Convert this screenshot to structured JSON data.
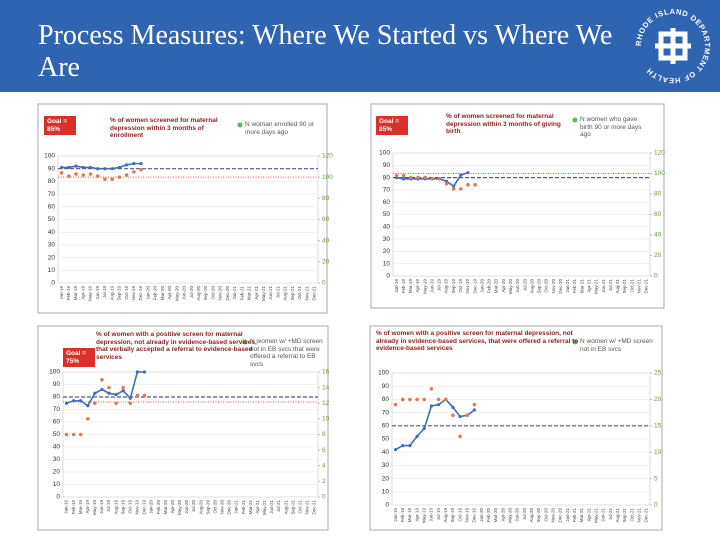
{
  "slide": {
    "title": "Process Measures: Where We Started vs Where We Are",
    "logo_text": "RHODE ISLAND DEPARTMENT OF HEALTH"
  },
  "chart_data": [
    {
      "type": "line",
      "goal_label": "Goal = 85%",
      "categories": [
        "Jan-19",
        "Feb-19",
        "Mar-19",
        "Apr-19",
        "May-19",
        "Jun-19",
        "Jul-19",
        "Aug-19",
        "Sep-19",
        "Oct-19",
        "Nov-19",
        "Dec-19",
        "Jan-20",
        "Feb-20",
        "Mar-20",
        "Apr-20",
        "May-20",
        "Jun-20",
        "Jul-20",
        "Aug-20",
        "Sep-20",
        "Oct-20",
        "Nov-20",
        "Dec-20",
        "Jan-21",
        "Feb-21",
        "Mar-21",
        "Apr-21",
        "May-21",
        "Jun-21",
        "Jul-21",
        "Aug-21",
        "Sep-21",
        "Oct-21",
        "Nov-21",
        "Dec-21"
      ],
      "ylim": [
        0,
        100
      ],
      "yticks": [
        0,
        10,
        20,
        30,
        40,
        50,
        60,
        70,
        80,
        90,
        100
      ],
      "y2lim": [
        0,
        120
      ],
      "y2ticks": [
        0,
        20,
        40,
        60,
        80,
        100,
        120
      ],
      "series": [
        {
          "name": "% of women screened for maternal depression within 3 months of enrollment",
          "color": "#3d6fb6",
          "values": [
            91,
            91,
            92,
            91,
            91,
            90,
            90,
            90,
            91,
            93,
            94,
            94,
            null,
            null,
            null,
            null,
            null,
            null,
            null,
            null,
            null,
            null,
            null,
            null,
            null,
            null,
            null,
            null,
            null,
            null,
            null,
            null,
            null,
            null,
            null,
            null
          ]
        },
        {
          "name": "N woman enrolled 90 or more days ago",
          "color": "#e07a55",
          "axis": "y2",
          "values": [
            104,
            101,
            103,
            102,
            103,
            101,
            98,
            98,
            100,
            102,
            105,
            107,
            null,
            null,
            null,
            null,
            null,
            null,
            null,
            null,
            null,
            null,
            null,
            null,
            null,
            null,
            null,
            null,
            null,
            null,
            null,
            null,
            null,
            null,
            null,
            null
          ]
        }
      ],
      "reference_lines": [
        {
          "value": 90,
          "color": "#5b4ea0",
          "style": "dashed"
        },
        {
          "value": 100,
          "axis": "y2",
          "color": "#e05050",
          "style": "dotted"
        }
      ]
    },
    {
      "type": "line",
      "goal_label": "Goal = 85%",
      "categories": [
        "Jan-19",
        "Feb-19",
        "Mar-19",
        "Apr-19",
        "May-19",
        "Jun-19",
        "Jul-19",
        "Aug-19",
        "Sep-19",
        "Oct-19",
        "Nov-19",
        "Dec-19",
        "Jan-20",
        "Feb-20",
        "Mar-20",
        "Apr-20",
        "May-20",
        "Jun-20",
        "Jul-20",
        "Aug-20",
        "Sep-20",
        "Oct-20",
        "Nov-20",
        "Dec-20",
        "Jan-21",
        "Feb-21",
        "Mar-21",
        "Apr-21",
        "May-21",
        "Jun-21",
        "Jul-21",
        "Aug-21",
        "Sep-21",
        "Oct-21",
        "Nov-21",
        "Dec-21"
      ],
      "ylim": [
        0,
        100
      ],
      "yticks": [
        0,
        10,
        20,
        30,
        40,
        50,
        60,
        70,
        80,
        90,
        100
      ],
      "y2lim": [
        0,
        120
      ],
      "y2ticks": [
        0,
        20,
        40,
        60,
        80,
        100,
        120
      ],
      "series": [
        {
          "name": "% of women screened for maternal depression within 3 months of giving birth",
          "color": "#3d6fb6",
          "values": [
            80,
            79,
            79,
            79,
            79,
            79,
            79,
            77,
            73,
            82,
            84,
            null,
            null,
            null,
            null,
            null,
            null,
            null,
            null,
            null,
            null,
            null,
            null,
            null,
            null,
            null,
            null,
            null,
            null,
            null,
            null,
            null,
            null,
            null,
            null,
            null
          ]
        },
        {
          "name": "N women who gave birth 90 or more days ago",
          "color": "#e07a55",
          "axis": "y2",
          "values": [
            98,
            98,
            96,
            96,
            96,
            95,
            95,
            90,
            85,
            85,
            89,
            89,
            null,
            null,
            null,
            null,
            null,
            null,
            null,
            null,
            null,
            null,
            null,
            null,
            null,
            null,
            null,
            null,
            null,
            null,
            null,
            null,
            null,
            null,
            null,
            null
          ]
        }
      ],
      "reference_lines": [
        {
          "value": 80,
          "color": "#5b4ea0",
          "style": "dashed"
        },
        {
          "value": 100,
          "axis": "y2",
          "color": "#e05050",
          "style": "dotted"
        }
      ]
    },
    {
      "type": "line",
      "goal_label": "Goal = 75%",
      "categories": [
        "Jan-19",
        "Feb-19",
        "Mar-19",
        "Apr-19",
        "May-19",
        "Jun-19",
        "Jul-19",
        "Aug-19",
        "Sep-19",
        "Oct-19",
        "Nov-19",
        "Dec-19",
        "Jan-20",
        "Feb-20",
        "Mar-20",
        "Apr-20",
        "May-20",
        "Jun-20",
        "Jul-20",
        "Aug-20",
        "Sep-20",
        "Oct-20",
        "Nov-20",
        "Dec-20",
        "Jan-21",
        "Feb-21",
        "Mar-21",
        "Apr-21",
        "May-21",
        "Jun-21",
        "Jul-21",
        "Aug-21",
        "Sep-21",
        "Oct-21",
        "Nov-21",
        "Dec-21"
      ],
      "ylim": [
        0,
        100
      ],
      "yticks": [
        0,
        10,
        20,
        30,
        40,
        50,
        60,
        70,
        80,
        90,
        100
      ],
      "y2lim": [
        0,
        16
      ],
      "y2ticks": [
        0,
        2,
        4,
        6,
        8,
        10,
        12,
        14,
        16
      ],
      "series": [
        {
          "name": "% of women with a positive screen for maternal depression, not already in evidence-based services, that verbally accepted a referral to evidence-based services",
          "color": "#3d6fb6",
          "values": [
            75,
            77,
            77,
            73,
            83,
            86,
            83,
            82,
            85,
            79,
            100,
            100,
            null,
            null,
            null,
            null,
            null,
            null,
            null,
            null,
            null,
            null,
            null,
            null,
            null,
            null,
            null,
            null,
            null,
            null,
            null,
            null,
            null,
            null,
            null,
            null
          ]
        },
        {
          "name": "N women w/ +MD screen not in EB svcs that were offered a referral to EB svcs",
          "color": "#e07a55",
          "axis": "y2",
          "values": [
            8,
            8,
            8,
            10,
            12,
            15,
            14,
            12,
            14,
            12,
            13,
            13,
            null,
            null,
            null,
            null,
            null,
            null,
            null,
            null,
            null,
            null,
            null,
            null,
            null,
            null,
            null,
            null,
            null,
            null,
            null,
            null,
            null,
            null,
            null,
            null
          ]
        }
      ],
      "reference_lines": [
        {
          "value": 80,
          "color": "#5b4ea0",
          "style": "dashed"
        },
        {
          "value": 76,
          "color": "#e05050",
          "style": "dotted"
        }
      ]
    },
    {
      "type": "line",
      "categories": [
        "Jan-19",
        "Feb-19",
        "Mar-19",
        "Apr-19",
        "May-19",
        "Jun-19",
        "Jul-19",
        "Aug-19",
        "Sep-19",
        "Oct-19",
        "Nov-19",
        "Dec-19",
        "Jan-20",
        "Feb-20",
        "Mar-20",
        "Apr-20",
        "May-20",
        "Jun-20",
        "Jul-20",
        "Aug-20",
        "Sep-20",
        "Oct-20",
        "Nov-20",
        "Dec-20",
        "Jan-21",
        "Feb-21",
        "Mar-21",
        "Apr-21",
        "May-21",
        "Jun-21",
        "Jul-21",
        "Aug-21",
        "Sep-21",
        "Oct-21",
        "Nov-21",
        "Dec-21"
      ],
      "ylim": [
        0,
        100
      ],
      "yticks": [
        0,
        10,
        20,
        30,
        40,
        50,
        60,
        70,
        80,
        90,
        100
      ],
      "y2lim": [
        0,
        25
      ],
      "y2ticks": [
        0,
        5,
        10,
        15,
        20,
        25
      ],
      "series": [
        {
          "name": "% of women with a positive screen for maternal depression, not already in evidence-based services, that were offered a referral to evidence-based services",
          "color": "#3d6fb6",
          "values": [
            42,
            45,
            45,
            52,
            58,
            75,
            76,
            80,
            74,
            67,
            68,
            72,
            null,
            null,
            null,
            null,
            null,
            null,
            null,
            null,
            null,
            null,
            null,
            null,
            null,
            null,
            null,
            null,
            null,
            null,
            null,
            null,
            null,
            null,
            null,
            null
          ]
        },
        {
          "name": "N women w/ +MD screen not in EB svcs",
          "color": "#e07a55",
          "axis": "y2",
          "values": [
            19,
            20,
            20,
            20,
            20,
            22,
            20,
            20,
            17,
            13,
            17,
            19,
            null,
            null,
            null,
            null,
            null,
            null,
            null,
            null,
            null,
            null,
            null,
            null,
            null,
            null,
            null,
            null,
            null,
            null,
            null,
            null,
            null,
            null,
            null,
            null
          ]
        }
      ],
      "reference_lines": [
        {
          "value": 60,
          "color": "#5b4ea0",
          "style": "dashed"
        }
      ]
    }
  ]
}
